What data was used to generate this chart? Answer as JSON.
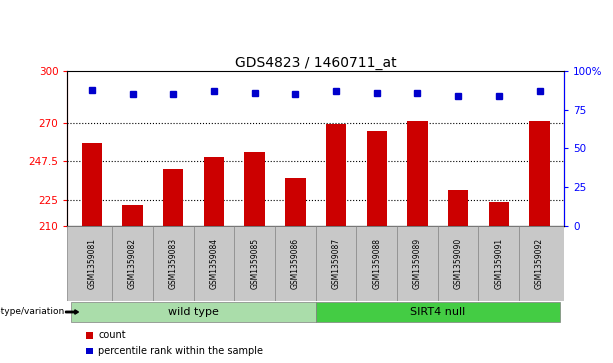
{
  "title": "GDS4823 / 1460711_at",
  "samples": [
    "GSM1359081",
    "GSM1359082",
    "GSM1359083",
    "GSM1359084",
    "GSM1359085",
    "GSM1359086",
    "GSM1359087",
    "GSM1359088",
    "GSM1359089",
    "GSM1359090",
    "GSM1359091",
    "GSM1359092"
  ],
  "bar_values": [
    258,
    222,
    243,
    250,
    253,
    238,
    269,
    265,
    271,
    231,
    224,
    271
  ],
  "percentile_values": [
    88,
    85,
    85,
    87,
    86,
    85,
    87,
    86,
    86,
    84,
    84,
    87
  ],
  "ymin": 210,
  "ymax": 300,
  "yticks": [
    210,
    225,
    247.5,
    270,
    300
  ],
  "ytick_labels": [
    "210",
    "225",
    "247.5",
    "270",
    "300"
  ],
  "right_yticks": [
    0,
    25,
    50,
    75,
    100
  ],
  "right_ytick_labels": [
    "0",
    "25",
    "50",
    "75",
    "100%"
  ],
  "bar_color": "#cc0000",
  "dot_color": "#0000cc",
  "bar_width": 0.5,
  "group_defs": [
    {
      "start": 0,
      "end": 5,
      "label": "wild type",
      "color": "#aaddaa"
    },
    {
      "start": 6,
      "end": 11,
      "label": "SIRT4 null",
      "color": "#44cc44"
    }
  ],
  "group_row_label": "genotype/variation",
  "legend_items": [
    {
      "color": "#cc0000",
      "label": "count"
    },
    {
      "color": "#0000cc",
      "label": "percentile rank within the sample"
    }
  ],
  "background_color": "#ffffff",
  "sample_area_color": "#c8c8c8",
  "title_fontsize": 10,
  "tick_fontsize": 7.5,
  "sample_fontsize": 5.5,
  "group_fontsize": 8,
  "legend_fontsize": 7
}
